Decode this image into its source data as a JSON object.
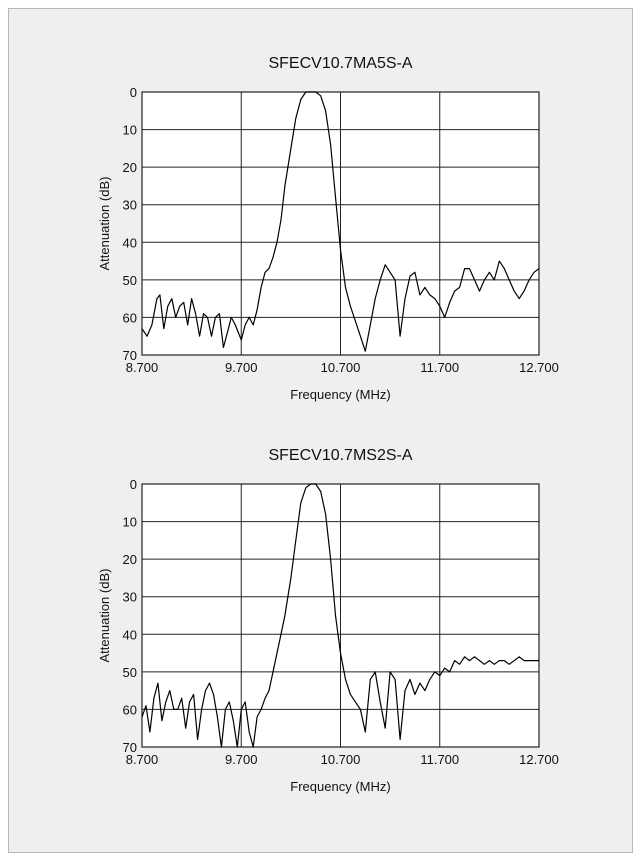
{
  "panel": {},
  "chart_data": [
    {
      "type": "line",
      "title": "SFECV10.7MA5S-A",
      "xlabel": "Frequency (MHz)",
      "ylabel": "Attenuation (dB)",
      "xlim": [
        8.7,
        12.7
      ],
      "ylim": [
        0,
        70
      ],
      "y_inverted": true,
      "x_ticks": [
        "8.700",
        "9.700",
        "10.700",
        "11.700",
        "12.700"
      ],
      "y_ticks": [
        "0",
        "10",
        "20",
        "30",
        "40",
        "50",
        "60",
        "70"
      ],
      "grid": true,
      "series": [
        {
          "x": [
            8.7,
            8.75,
            8.8,
            8.85,
            8.88,
            8.92,
            8.96,
            9.0,
            9.04,
            9.08,
            9.12,
            9.16,
            9.2,
            9.24,
            9.28,
            9.32,
            9.36,
            9.4,
            9.44,
            9.48,
            9.52,
            9.56,
            9.6,
            9.64,
            9.7,
            9.74,
            9.78,
            9.82,
            9.86,
            9.9,
            9.94,
            9.98,
            10.02,
            10.06,
            10.1,
            10.14,
            10.2,
            10.25,
            10.3,
            10.35,
            10.4,
            10.45,
            10.5,
            10.55,
            10.6,
            10.65,
            10.7,
            10.75,
            10.8,
            10.85,
            10.9,
            10.95,
            11.0,
            11.05,
            11.1,
            11.15,
            11.2,
            11.25,
            11.3,
            11.35,
            11.4,
            11.45,
            11.5,
            11.55,
            11.6,
            11.65,
            11.7,
            11.75,
            11.8,
            11.85,
            11.9,
            11.95,
            12.0,
            12.05,
            12.1,
            12.15,
            12.2,
            12.25,
            12.3,
            12.35,
            12.4,
            12.45,
            12.5,
            12.55,
            12.6,
            12.65,
            12.7
          ],
          "y": [
            63,
            65,
            62,
            55,
            54,
            63,
            57,
            55,
            60,
            57,
            56,
            62,
            55,
            59,
            65,
            59,
            60,
            65,
            60,
            59,
            68,
            64,
            60,
            62,
            66,
            62,
            60,
            62,
            58,
            52,
            48,
            47,
            44,
            40,
            34,
            25,
            15,
            7,
            2,
            0,
            0,
            0,
            1,
            5,
            14,
            28,
            42,
            52,
            57,
            61,
            65,
            69,
            62,
            55,
            50,
            46,
            48,
            50,
            65,
            55,
            49,
            48,
            54,
            52,
            54,
            55,
            57,
            60,
            56,
            53,
            52,
            47,
            47,
            50,
            53,
            50,
            48,
            50,
            45,
            47,
            50,
            53,
            55,
            53,
            50,
            48,
            47
          ]
        }
      ]
    },
    {
      "type": "line",
      "title": "SFECV10.7MS2S-A",
      "xlabel": "Frequency (MHz)",
      "ylabel": "Attenuation (dB)",
      "xlim": [
        8.7,
        12.7
      ],
      "ylim": [
        0,
        70
      ],
      "y_inverted": true,
      "x_ticks": [
        "8.700",
        "9.700",
        "10.700",
        "11.700",
        "12.700"
      ],
      "y_ticks": [
        "0",
        "10",
        "20",
        "30",
        "40",
        "50",
        "60",
        "70"
      ],
      "grid": true,
      "series": [
        {
          "x": [
            8.7,
            8.74,
            8.78,
            8.82,
            8.86,
            8.9,
            8.94,
            8.98,
            9.02,
            9.06,
            9.1,
            9.14,
            9.18,
            9.22,
            9.26,
            9.3,
            9.34,
            9.38,
            9.42,
            9.46,
            9.5,
            9.54,
            9.58,
            9.62,
            9.66,
            9.7,
            9.74,
            9.78,
            9.82,
            9.86,
            9.9,
            9.94,
            9.98,
            10.02,
            10.06,
            10.1,
            10.14,
            10.2,
            10.25,
            10.3,
            10.35,
            10.4,
            10.45,
            10.5,
            10.55,
            10.6,
            10.65,
            10.7,
            10.75,
            10.8,
            10.85,
            10.9,
            10.95,
            11.0,
            11.05,
            11.1,
            11.15,
            11.2,
            11.25,
            11.3,
            11.35,
            11.4,
            11.45,
            11.5,
            11.55,
            11.6,
            11.65,
            11.7,
            11.75,
            11.8,
            11.85,
            11.9,
            11.95,
            12.0,
            12.05,
            12.1,
            12.15,
            12.2,
            12.25,
            12.3,
            12.35,
            12.4,
            12.45,
            12.5,
            12.55,
            12.6,
            12.65,
            12.7
          ],
          "y": [
            62,
            59,
            66,
            57,
            53,
            63,
            58,
            55,
            60,
            60,
            57,
            65,
            58,
            56,
            68,
            60,
            55,
            53,
            56,
            62,
            70,
            60,
            58,
            63,
            70,
            60,
            58,
            66,
            70,
            62,
            60,
            57,
            55,
            50,
            45,
            40,
            35,
            25,
            15,
            5,
            1,
            0,
            0,
            2,
            8,
            20,
            35,
            45,
            52,
            56,
            58,
            60,
            66,
            52,
            50,
            58,
            65,
            50,
            52,
            68,
            55,
            52,
            56,
            53,
            55,
            52,
            50,
            51,
            49,
            50,
            47,
            48,
            46,
            47,
            46,
            47,
            48,
            47,
            48,
            47,
            47,
            48,
            47,
            46,
            47,
            47,
            47,
            47
          ]
        }
      ]
    }
  ]
}
